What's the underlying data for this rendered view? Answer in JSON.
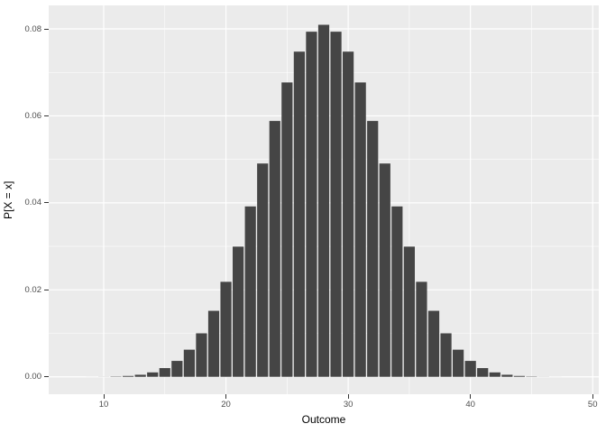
{
  "chart_data": {
    "type": "bar",
    "title": "",
    "xlabel": "Outcome",
    "ylabel": "P[X = x]",
    "x": [
      8,
      9,
      10,
      11,
      12,
      13,
      14,
      15,
      16,
      17,
      18,
      19,
      20,
      21,
      22,
      23,
      24,
      25,
      26,
      27,
      28,
      29,
      30,
      31,
      32,
      33,
      34,
      35,
      36,
      37,
      38,
      39,
      40,
      41,
      42,
      43,
      44,
      45,
      46,
      47,
      48
    ],
    "values": [
      6e-07,
      4.8e-06,
      2.14e-05,
      7.14e-05,
      0.0001965,
      0.0004716,
      0.0010169,
      0.0020052,
      0.0036598,
      0.0062395,
      0.0100071,
      0.0151749,
      0.0218432,
      0.0299402,
      0.0391804,
      0.0490493,
      0.0588307,
      0.0676869,
      0.0747718,
      0.0793562,
      0.0809434,
      0.0793562,
      0.0747718,
      0.0676869,
      0.0588307,
      0.0490493,
      0.0391804,
      0.0299402,
      0.0218432,
      0.0151749,
      0.0100071,
      0.0062395,
      0.0036598,
      0.0020052,
      0.0010169,
      0.0004716,
      0.0001965,
      7.14e-05,
      2.14e-05,
      4.8e-06,
      6e-07
    ],
    "bar_width": 0.9,
    "xlim": [
      5.5,
      50.5
    ],
    "ylim": [
      -0.004,
      0.0854
    ],
    "x_major_ticks": [
      10,
      20,
      30,
      40,
      50
    ],
    "x_tick_labels": [
      "10",
      "20",
      "30",
      "40",
      "50"
    ],
    "x_minor_ticks": [
      15,
      25,
      35,
      45
    ],
    "y_major_ticks": [
      0,
      0.02,
      0.04,
      0.06,
      0.08
    ],
    "y_tick_labels": [
      "0.00",
      "0.02",
      "0.04",
      "0.06",
      "0.08"
    ],
    "y_minor_ticks": [
      0.01,
      0.03,
      0.05,
      0.07
    ],
    "grid": true,
    "legend_position": "none"
  },
  "colors": {
    "bar_fill": "#454545",
    "panel_background": "#EBEBEB",
    "grid_major": "#FFFFFF",
    "grid_minor": "#FFFFFF",
    "tick_mark": "#333333",
    "axis_text": "#4D4D4D",
    "axis_title": "#000000",
    "figure_background": "#FFFFFF"
  }
}
